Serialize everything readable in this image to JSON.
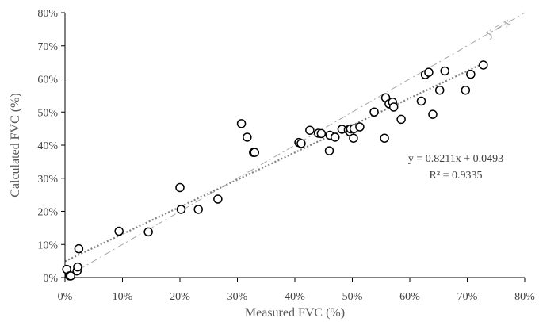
{
  "chart_data": {
    "type": "scatter",
    "title": "",
    "xlabel": "Measured FVC (%)",
    "ylabel": "Calculated FVC (%)",
    "xlim": [
      0,
      0.8
    ],
    "ylim": [
      0,
      0.8
    ],
    "x_ticks": [
      0,
      0.1,
      0.2,
      0.3,
      0.4,
      0.5,
      0.6,
      0.7,
      0.8
    ],
    "y_ticks": [
      0,
      0.1,
      0.2,
      0.3,
      0.4,
      0.5,
      0.6,
      0.7,
      0.8
    ],
    "x_tick_labels": [
      "0%",
      "10%",
      "20%",
      "30%",
      "40%",
      "50%",
      "60%",
      "70%",
      "80%"
    ],
    "y_tick_labels": [
      "0%",
      "10%",
      "20%",
      "30%",
      "40%",
      "50%",
      "60%",
      "70%",
      "80%"
    ],
    "grid": false,
    "legend": "none",
    "marker": "open-circle",
    "series": [
      {
        "points": [
          [
            0.003,
            0.025
          ],
          [
            0.008,
            0.005
          ],
          [
            0.01,
            0.005
          ],
          [
            0.021,
            0.02
          ],
          [
            0.022,
            0.032
          ],
          [
            0.024,
            0.087
          ],
          [
            0.094,
            0.14
          ],
          [
            0.145,
            0.138
          ],
          [
            0.2,
            0.272
          ],
          [
            0.202,
            0.206
          ],
          [
            0.232,
            0.206
          ],
          [
            0.266,
            0.237
          ],
          [
            0.307,
            0.465
          ],
          [
            0.317,
            0.424
          ],
          [
            0.328,
            0.378
          ],
          [
            0.33,
            0.378
          ],
          [
            0.407,
            0.408
          ],
          [
            0.411,
            0.405
          ],
          [
            0.426,
            0.445
          ],
          [
            0.441,
            0.436
          ],
          [
            0.446,
            0.435
          ],
          [
            0.46,
            0.383
          ],
          [
            0.461,
            0.43
          ],
          [
            0.47,
            0.424
          ],
          [
            0.482,
            0.448
          ],
          [
            0.493,
            0.446
          ],
          [
            0.496,
            0.44
          ],
          [
            0.497,
            0.449
          ],
          [
            0.502,
            0.421
          ],
          [
            0.503,
            0.45
          ],
          [
            0.513,
            0.455
          ],
          [
            0.538,
            0.5
          ],
          [
            0.556,
            0.421
          ],
          [
            0.558,
            0.543
          ],
          [
            0.564,
            0.525
          ],
          [
            0.57,
            0.53
          ],
          [
            0.572,
            0.515
          ],
          [
            0.585,
            0.478
          ],
          [
            0.62,
            0.533
          ],
          [
            0.627,
            0.613
          ],
          [
            0.633,
            0.62
          ],
          [
            0.64,
            0.493
          ],
          [
            0.652,
            0.566
          ],
          [
            0.661,
            0.624
          ],
          [
            0.697,
            0.566
          ],
          [
            0.706,
            0.614
          ],
          [
            0.728,
            0.642
          ]
        ]
      }
    ],
    "lines": [
      {
        "kind": "identity",
        "label": "y = x",
        "slope": 1,
        "intercept": 0,
        "color": "#a6a6a6",
        "style": "dash-dot"
      },
      {
        "kind": "trendline",
        "slope": 0.8211,
        "intercept": 0.0493,
        "color": "#808080",
        "style": "dotted",
        "x_range": [
          0,
          0.73
        ]
      }
    ],
    "annotations": {
      "identity_label": "y = x",
      "equation": "y = 0.8211x + 0.0493",
      "r_squared": "R² = 0.9335"
    }
  }
}
